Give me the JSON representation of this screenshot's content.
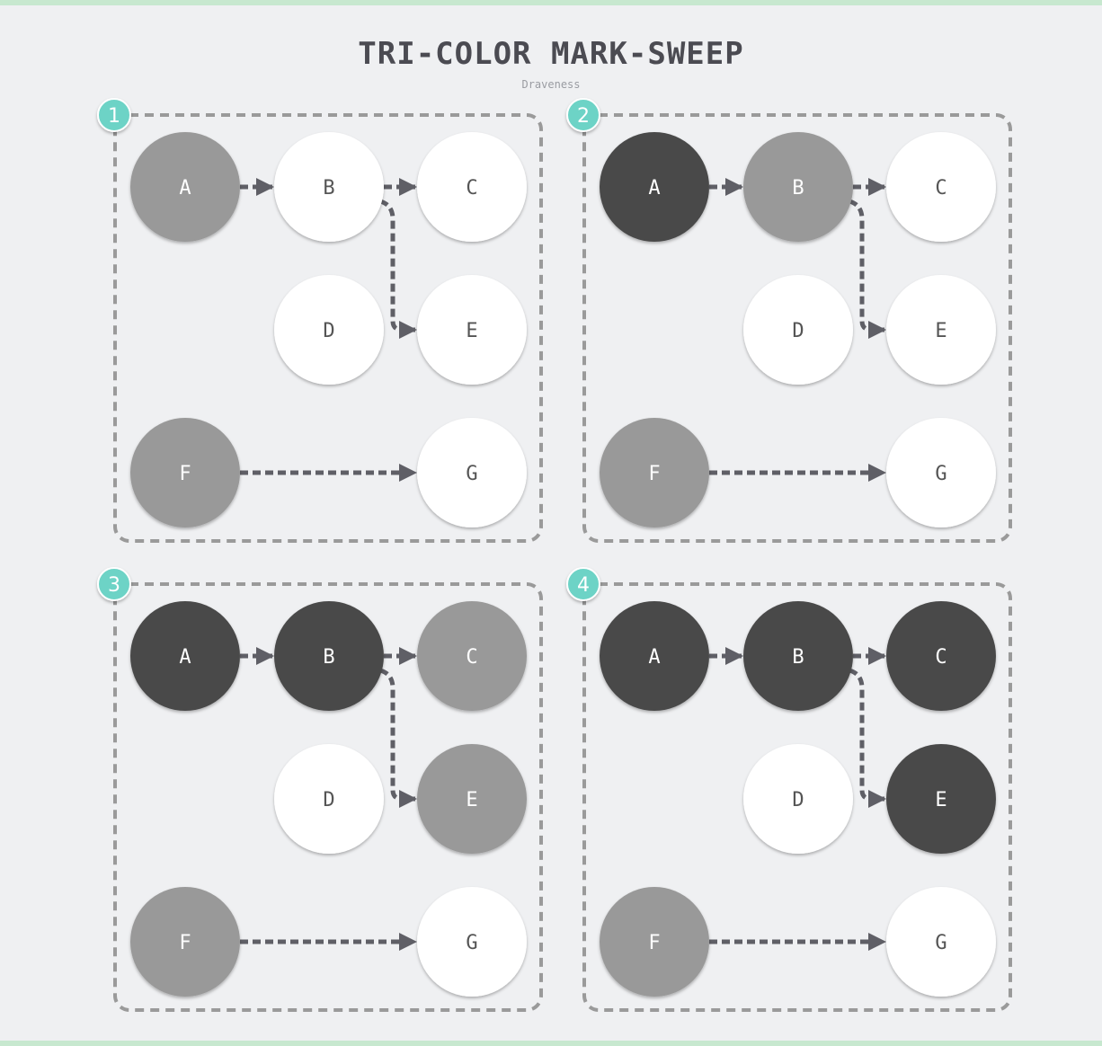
{
  "title": "TRI-COLOR MARK-SWEEP",
  "subtitle": "Draveness",
  "colors": {
    "white": "#ffffff",
    "grey": "#999999",
    "black": "#4a4a4a",
    "badge": "#6dd3c6",
    "edge": "#5f5f66",
    "border": "#9a9a9a",
    "label_on_light": "#555555",
    "label_on_dark": "#ffffff"
  },
  "panels": [
    {
      "step": "1",
      "nodes": {
        "A": "grey",
        "B": "white",
        "C": "white",
        "D": "white",
        "E": "white",
        "F": "grey",
        "G": "white"
      }
    },
    {
      "step": "2",
      "nodes": {
        "A": "black",
        "B": "grey",
        "C": "white",
        "D": "white",
        "E": "white",
        "F": "grey",
        "G": "white"
      }
    },
    {
      "step": "3",
      "nodes": {
        "A": "black",
        "B": "black",
        "C": "grey",
        "D": "white",
        "E": "grey",
        "F": "grey",
        "G": "white"
      }
    },
    {
      "step": "4",
      "nodes": {
        "A": "black",
        "B": "black",
        "C": "black",
        "D": "white",
        "E": "black",
        "F": "grey",
        "G": "white"
      }
    }
  ],
  "edges": [
    {
      "from": "A",
      "to": "B"
    },
    {
      "from": "B",
      "to": "C"
    },
    {
      "from": "B",
      "to": "E"
    },
    {
      "from": "F",
      "to": "G"
    }
  ]
}
